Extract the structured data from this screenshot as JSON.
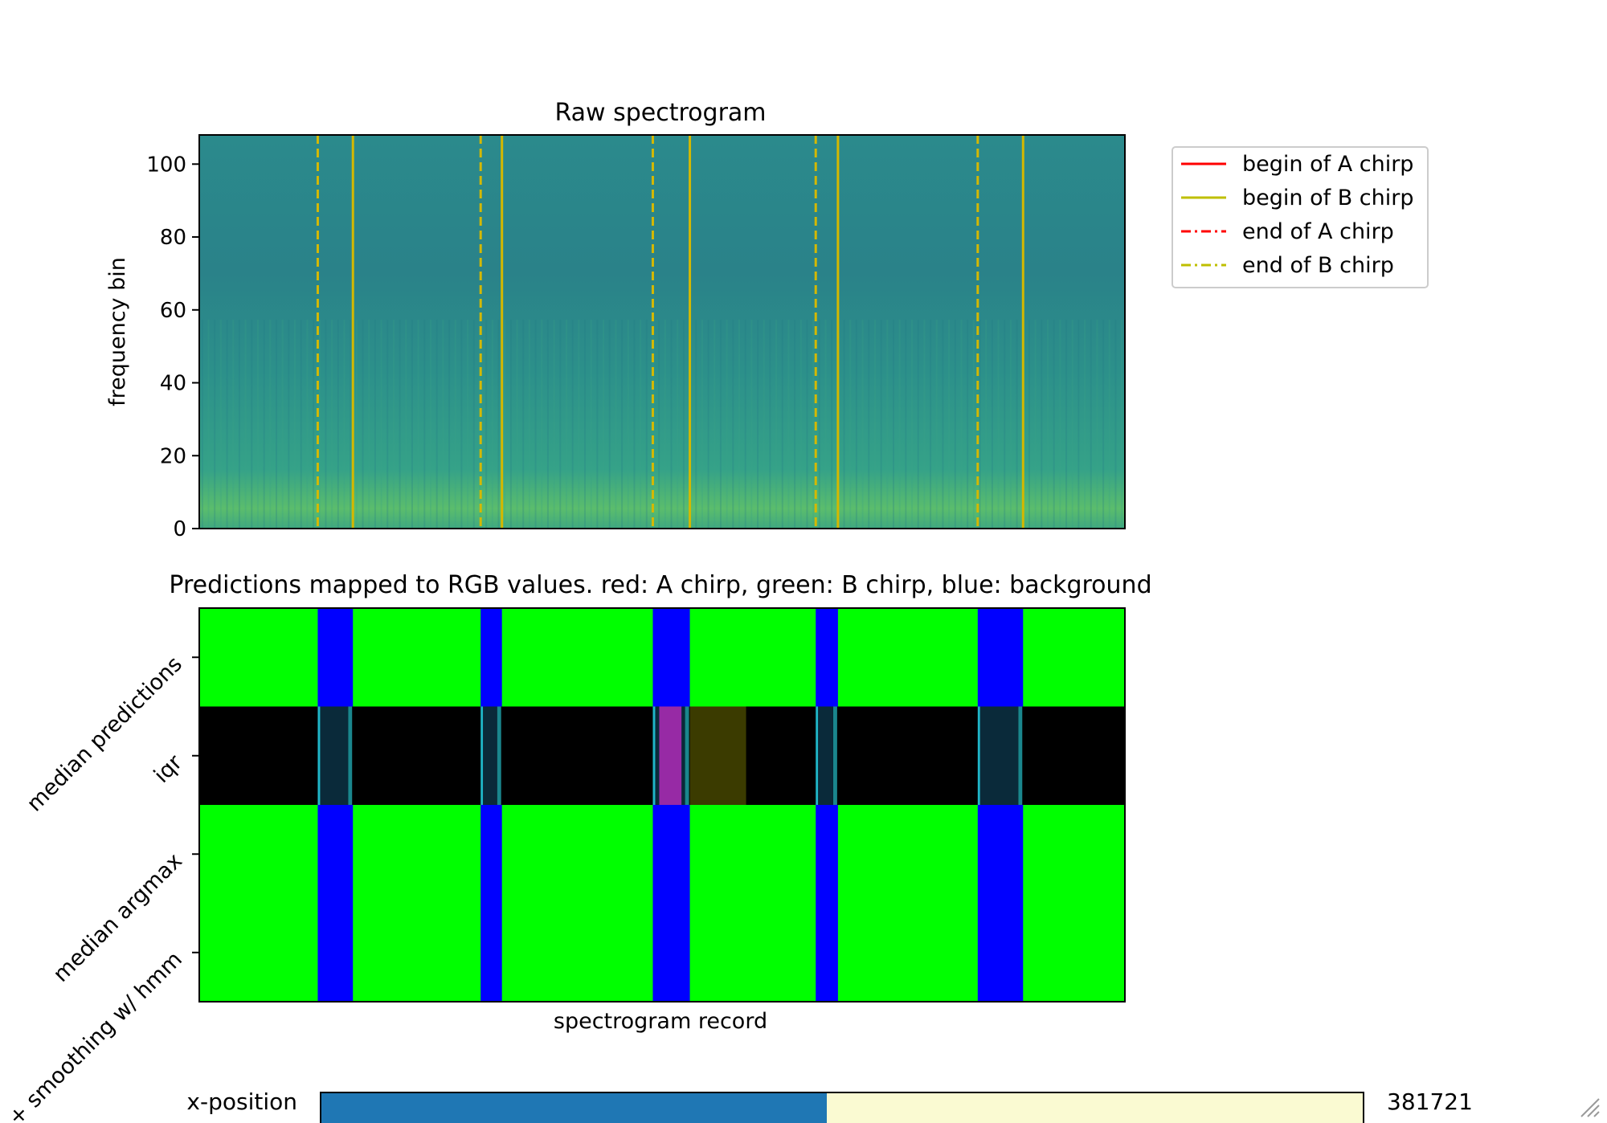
{
  "chart_data": [
    {
      "type": "heatmap",
      "title": "Raw spectrogram",
      "ylabel": "frequency bin",
      "ylim": [
        0,
        108
      ],
      "yticks": [
        "0",
        "20",
        "40",
        "60",
        "80",
        "100"
      ],
      "x_range": [
        0,
        1000
      ],
      "chirp_lines": [
        {
          "start": 128,
          "end": 166
        },
        {
          "start": 304,
          "end": 327
        },
        {
          "start": 490,
          "end": 530
        },
        {
          "start": 666,
          "end": 690
        },
        {
          "start": 841,
          "end": 890
        }
      ],
      "legend": {
        "placement": "upper-right-outside",
        "entries": [
          {
            "label": "begin of A chirp",
            "color": "#ff0000",
            "style": "solid"
          },
          {
            "label": "begin of B chirp",
            "color": "#bfbf00",
            "style": "solid"
          },
          {
            "label": "end of A chirp",
            "color": "#ff0000",
            "style": "dashdot"
          },
          {
            "label": "end of B chirp",
            "color": "#bfbf00",
            "style": "dashdot"
          }
        ]
      }
    },
    {
      "type": "heatmap",
      "title": "Predictions mapped to RGB values. red: A chirp, green: B chirp, blue: background",
      "xlabel": "spectrogram record",
      "x_range": [
        0,
        1000
      ],
      "rows": [
        "median predictions",
        "iqr",
        "median argmax",
        "+ smoothing w/ hmm"
      ],
      "colors": {
        "b_chirp": "#00ff00",
        "background": "#0000ff",
        "iqr": "#000000"
      },
      "blue_segments": [
        {
          "start": 128,
          "end": 166
        },
        {
          "start": 304,
          "end": 327
        },
        {
          "start": 490,
          "end": 530
        },
        {
          "start": 666,
          "end": 690
        },
        {
          "start": 841,
          "end": 890
        }
      ]
    }
  ],
  "slider": {
    "label": "x-position",
    "value": "381721",
    "fraction": 0.485,
    "fill_color": "#1f77b4",
    "track_color": "#fafad2"
  }
}
